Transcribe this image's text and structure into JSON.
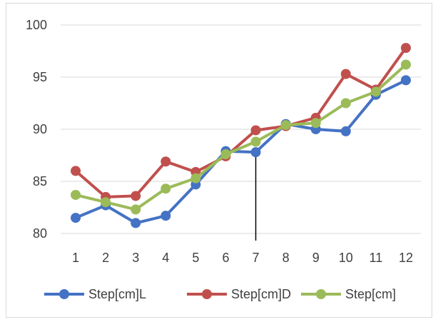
{
  "chart_data": {
    "type": "line",
    "categories": [
      "1",
      "2",
      "3",
      "4",
      "5",
      "6",
      "7",
      "8",
      "9",
      "10",
      "11",
      "12"
    ],
    "series": [
      {
        "name": "Step[cm]L",
        "color": "#4472C4",
        "values": [
          81.5,
          82.7,
          81.0,
          81.7,
          84.7,
          87.9,
          87.8,
          90.5,
          90.0,
          89.8,
          93.3,
          94.7
        ]
      },
      {
        "name": "Step[cm]D",
        "color": "#C0504D",
        "values": [
          86.0,
          83.5,
          83.6,
          86.9,
          85.9,
          87.4,
          89.9,
          90.3,
          91.1,
          95.3,
          93.8,
          97.8
        ]
      },
      {
        "name": "Step[cm]",
        "color": "#9BBB59",
        "values": [
          83.7,
          83.0,
          82.3,
          84.3,
          85.3,
          87.6,
          88.8,
          90.4,
          90.6,
          92.5,
          93.6,
          96.2
        ]
      }
    ],
    "ylim": [
      80,
      100
    ],
    "yticks": [
      "80",
      "85",
      "90",
      "95",
      "100"
    ],
    "grid": true,
    "legend_position": "bottom",
    "marker_line": {
      "category": "7",
      "color": "#000000"
    }
  }
}
